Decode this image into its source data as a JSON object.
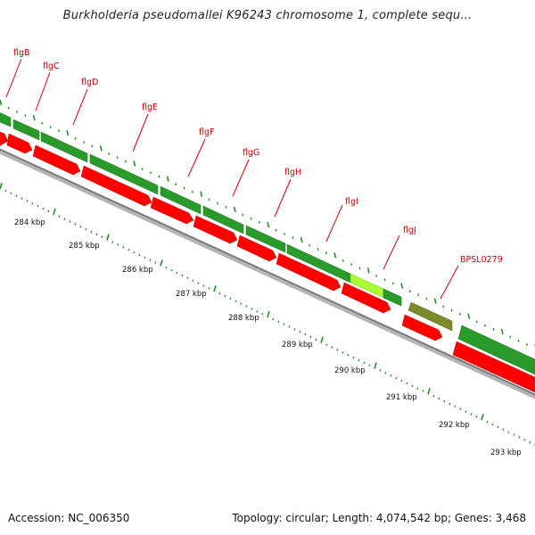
{
  "title": "Burkholderia pseudomallei K96243 chromosome 1, complete sequ...",
  "footer": {
    "accession": "Accession: NC_006350",
    "summary": "Topology: circular; Length: 4,074,542 bp; Genes: 3,468"
  },
  "colors": {
    "forward_gene": "#2a9b2a",
    "reverse_gene": "#ff0000",
    "highlight_gene": "#aaff33",
    "pseudo_gene": "#7c8a2a",
    "label": "#cc0000",
    "ticks": "#2e8b2e",
    "backbone": "#888888"
  },
  "gene_labels": [
    "flgB",
    "flgC",
    "flgD",
    "flgE",
    "flgF",
    "flgG",
    "flgH",
    "flgI",
    "flgJ",
    "BPSL0279"
  ],
  "kbp_labels": [
    "284 kbp",
    "285 kbp",
    "286 kbp",
    "287 kbp",
    "288 kbp",
    "289 kbp",
    "290 kbp",
    "291 kbp",
    "292 kbp",
    "293 kbp"
  ]
}
